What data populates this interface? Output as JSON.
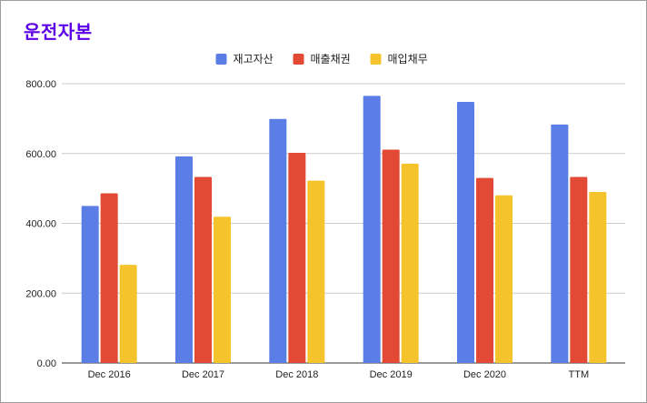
{
  "page": {
    "title": "운전자본"
  },
  "chart_data": {
    "type": "bar",
    "title": "운전자본",
    "categories": [
      "Dec 2016",
      "Dec 2017",
      "Dec 2018",
      "Dec 2019",
      "Dec 2020",
      "TTM"
    ],
    "series": [
      {
        "name": "재고자산",
        "color": "#5b7de6",
        "values": [
          450,
          592,
          699,
          765,
          748,
          683
        ]
      },
      {
        "name": "매출채권",
        "color": "#e34a35",
        "values": [
          486,
          533,
          602,
          611,
          530,
          533
        ]
      },
      {
        "name": "매입채무",
        "color": "#f5c42c",
        "values": [
          281,
          419,
          522,
          571,
          480,
          490
        ]
      }
    ],
    "ylim": [
      0,
      800
    ],
    "yticks": [
      "0.00",
      "200.00",
      "400.00",
      "600.00",
      "800.00"
    ],
    "ytick_values": [
      0,
      200,
      400,
      600,
      800
    ],
    "grid": true,
    "legend_position": "top-center"
  }
}
